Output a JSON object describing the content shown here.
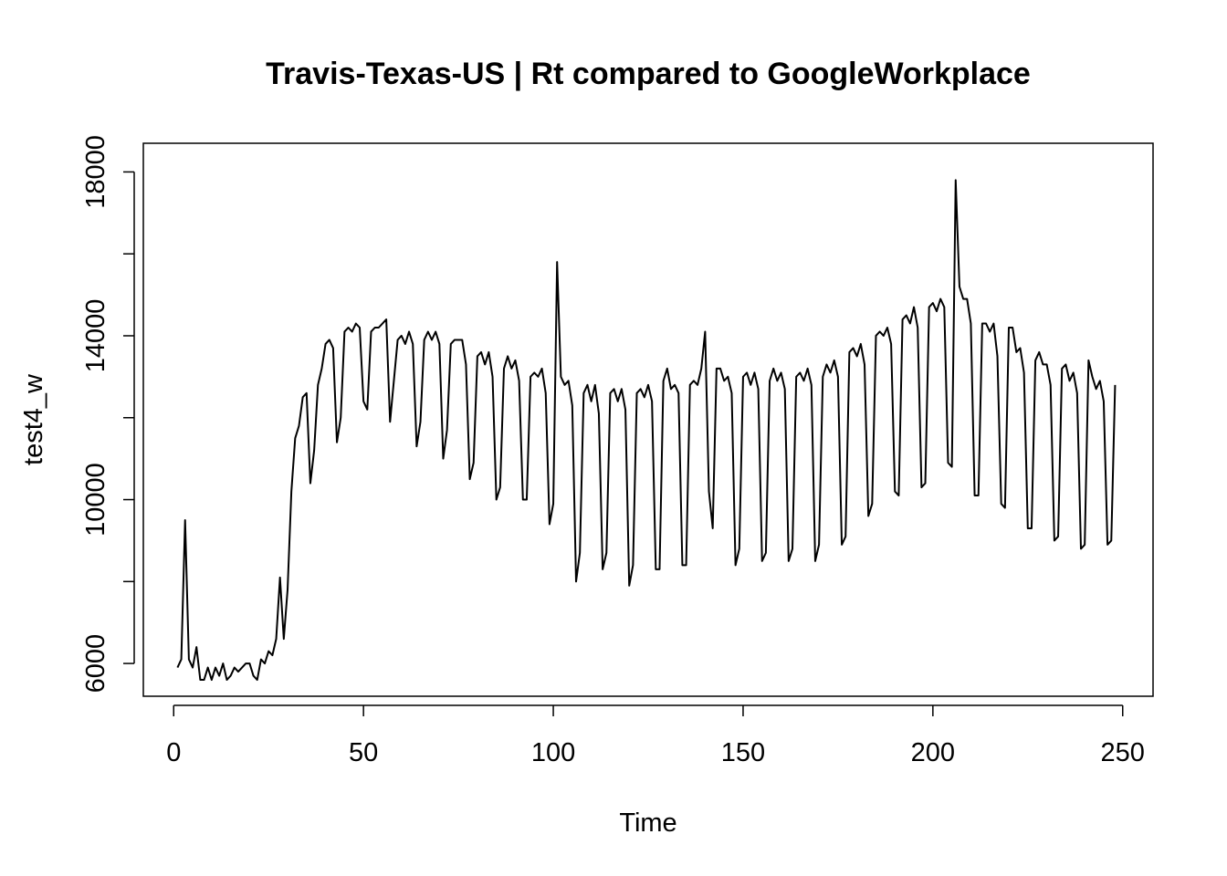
{
  "chart_data": {
    "type": "line",
    "title": "Travis-Texas-US | Rt compared to GoogleWorkplace",
    "xlabel": "Time",
    "ylabel": "test4_w",
    "xlim": [
      -8,
      258
    ],
    "ylim": [
      5200,
      18700
    ],
    "x_ticks": [
      "0",
      "50",
      "100",
      "150",
      "200",
      "250"
    ],
    "y_ticks": [
      "6000",
      "",
      "10000",
      "",
      "14000",
      "",
      "18000"
    ],
    "grid": false,
    "series": [
      {
        "values": [
          5900,
          6100,
          9500,
          6100,
          5900,
          6400,
          5600,
          5600,
          5900,
          5600,
          5900,
          5700,
          6000,
          5600,
          5700,
          5900,
          5800,
          5900,
          6000,
          6000,
          5700,
          5600,
          6100,
          6000,
          6300,
          6200,
          6600,
          8100,
          6600,
          7800,
          10200,
          11500,
          11800,
          12500,
          12600,
          10400,
          11200,
          12800,
          13200,
          13800,
          13900,
          13700,
          11400,
          12000,
          14100,
          14200,
          14100,
          14300,
          14200,
          12400,
          12200,
          14100,
          14200,
          14200,
          14300,
          14400,
          11900,
          12900,
          13900,
          14000,
          13800,
          14100,
          13800,
          11300,
          11900,
          13900,
          14100,
          13900,
          14100,
          13800,
          11000,
          11700,
          13800,
          13900,
          13900,
          13900,
          13300,
          10500,
          10900,
          13500,
          13600,
          13300,
          13600,
          13000,
          10000,
          10300,
          13200,
          13500,
          13200,
          13400,
          12900,
          10000,
          10000,
          13000,
          13100,
          13000,
          13200,
          12600,
          9400,
          9900,
          15800,
          13000,
          12800,
          12900,
          12300,
          8000,
          8700,
          12600,
          12800,
          12400,
          12800,
          12100,
          8300,
          8700,
          12600,
          12700,
          12400,
          12700,
          12200,
          7900,
          8400,
          12600,
          12700,
          12500,
          12800,
          12400,
          8300,
          8300,
          12900,
          13200,
          12700,
          12800,
          12600,
          8400,
          8400,
          12800,
          12900,
          12800,
          13200,
          14100,
          10200,
          9300,
          13200,
          13200,
          12900,
          13000,
          12600,
          8400,
          8800,
          13000,
          13100,
          12800,
          13100,
          12700,
          8500,
          8700,
          12900,
          13200,
          12900,
          13100,
          12700,
          8500,
          8800,
          13000,
          13100,
          12900,
          13200,
          12800,
          8500,
          8900,
          13000,
          13300,
          13100,
          13400,
          13000,
          8900,
          9100,
          13600,
          13700,
          13500,
          13800,
          13300,
          9600,
          9900,
          14000,
          14100,
          14000,
          14200,
          13800,
          10200,
          10100,
          14400,
          14500,
          14300,
          14700,
          14200,
          10300,
          10400,
          14700,
          14800,
          14600,
          14900,
          14700,
          10900,
          10800,
          17800,
          15200,
          14900,
          14900,
          14300,
          10100,
          10100,
          14300,
          14300,
          14100,
          14300,
          13500,
          9900,
          9800,
          14200,
          14200,
          13600,
          13700,
          13100,
          9300,
          9300,
          13400,
          13600,
          13300,
          13300,
          12800,
          9000,
          9100,
          13200,
          13300,
          12900,
          13100,
          12600,
          8800,
          8900,
          13400,
          13000,
          12700,
          12900,
          12400,
          8900,
          9000,
          12800
        ]
      }
    ]
  }
}
